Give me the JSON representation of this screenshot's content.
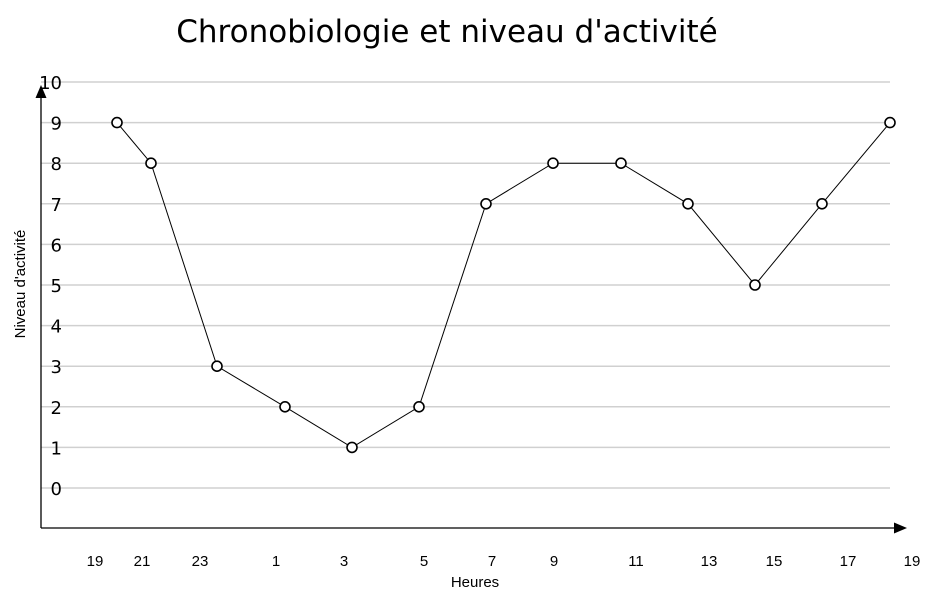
{
  "chart_data": {
    "type": "line",
    "title": "Chronobiologie et niveau d'activité",
    "xlabel": "Heures",
    "ylabel": "Niveau d'activité",
    "ylim": [
      0,
      10
    ],
    "y_ticks": [
      "0",
      "1",
      "2",
      "3",
      "4",
      "5",
      "6",
      "7",
      "8",
      "9",
      "10"
    ],
    "x_tick_labels": [
      "19",
      "21",
      "23",
      "1",
      "3",
      "5",
      "7",
      "9",
      "11",
      "13",
      "15",
      "17",
      "19"
    ],
    "grid": "horizontal",
    "legend": "none",
    "colors": {
      "line": "#000000",
      "marker_fill": "#ffffff",
      "grid": "#d0d0d0"
    },
    "series": [
      {
        "x": [
          20,
          21,
          23,
          1,
          3,
          5,
          7,
          9,
          11,
          13,
          15,
          17,
          19
        ],
        "values": [
          9,
          8,
          3,
          2,
          1,
          2,
          7,
          8,
          8,
          7,
          5,
          7,
          9
        ]
      }
    ]
  }
}
